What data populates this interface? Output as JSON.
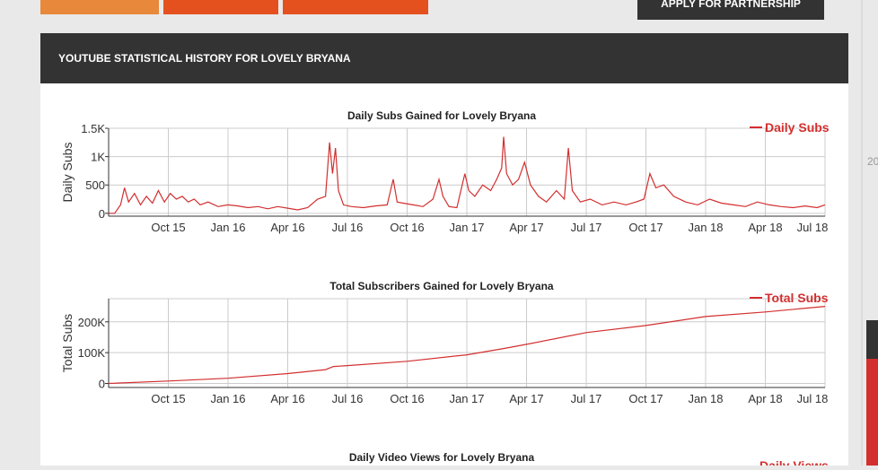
{
  "top_button": "APPLY FOR PARTNERSHIP",
  "section_title": "YOUTUBE STATISTICAL HISTORY FOR LOVELY BRYANA",
  "side_text": "20",
  "chart_data": [
    {
      "type": "line",
      "title": "Daily Subs Gained for Lovely Bryana",
      "y_label": "Daily Subs",
      "xlim": [
        0,
        36
      ],
      "ylim": [
        -50,
        1500
      ],
      "xticks": [
        {
          "value": 3,
          "label": "Oct 15"
        },
        {
          "value": 6,
          "label": "Jan 16"
        },
        {
          "value": 9,
          "label": "Apr 16"
        },
        {
          "value": 12,
          "label": "Jul 16"
        },
        {
          "value": 15,
          "label": "Oct 16"
        },
        {
          "value": 18,
          "label": "Jan 17"
        },
        {
          "value": 21,
          "label": "Apr 17"
        },
        {
          "value": 24,
          "label": "Jul 17"
        },
        {
          "value": 27,
          "label": "Oct 17"
        },
        {
          "value": 30,
          "label": "Jan 18"
        },
        {
          "value": 33,
          "label": "Apr 18"
        },
        {
          "value": 36,
          "label": "Jul 18"
        }
      ],
      "yticks": [
        0,
        500,
        {
          "value": 1000,
          "label": "1K"
        },
        {
          "value": 1500,
          "label": "1.5K"
        }
      ],
      "grid": true,
      "legend": "top-right",
      "x": [
        0,
        0.3,
        0.6,
        0.8,
        1,
        1.3,
        1.6,
        1.9,
        2.2,
        2.5,
        2.8,
        3.1,
        3.4,
        3.7,
        4,
        4.3,
        4.6,
        5,
        5.5,
        6,
        6.5,
        7,
        7.5,
        8,
        8.5,
        9,
        9.5,
        10,
        10.5,
        10.9,
        11.1,
        11.25,
        11.4,
        11.55,
        11.8,
        12.2,
        12.8,
        13.4,
        14,
        14.3,
        14.5,
        14.8,
        15.3,
        15.8,
        16.3,
        16.6,
        16.8,
        17.1,
        17.5,
        17.9,
        18.1,
        18.4,
        18.8,
        19.2,
        19.5,
        19.75,
        19.85,
        20,
        20.3,
        20.6,
        20.9,
        21.2,
        21.6,
        22,
        22.5,
        22.9,
        23.1,
        23.3,
        23.7,
        24.2,
        24.8,
        25.4,
        26,
        26.5,
        26.9,
        27.2,
        27.5,
        27.9,
        28.4,
        29,
        29.6,
        30.2,
        30.8,
        31.4,
        32,
        32.6,
        33.2,
        33.8,
        34.4,
        35,
        35.6,
        36
      ],
      "series": [
        {
          "name": "Daily Subs",
          "color": "#d32f2f",
          "values": [
            0,
            0,
            150,
            450,
            200,
            350,
            150,
            300,
            180,
            400,
            200,
            350,
            250,
            300,
            200,
            250,
            150,
            200,
            120,
            150,
            130,
            100,
            120,
            80,
            120,
            90,
            60,
            100,
            250,
            300,
            1250,
            700,
            1150,
            400,
            150,
            120,
            100,
            130,
            150,
            600,
            200,
            180,
            150,
            120,
            250,
            600,
            300,
            120,
            100,
            700,
            400,
            300,
            500,
            400,
            600,
            800,
            1350,
            700,
            500,
            600,
            900,
            500,
            300,
            200,
            400,
            250,
            1150,
            400,
            200,
            250,
            150,
            200,
            150,
            200,
            250,
            700,
            450,
            500,
            300,
            200,
            150,
            250,
            180,
            150,
            120,
            200,
            150,
            120,
            100,
            130,
            100,
            150
          ]
        }
      ]
    },
    {
      "type": "line",
      "title": "Total Subscribers Gained for Lovely Bryana",
      "y_label": "Total Subs",
      "xlim": [
        0,
        36
      ],
      "ylim": [
        -13000,
        275000
      ],
      "xticks": [
        {
          "value": 3,
          "label": "Oct 15"
        },
        {
          "value": 6,
          "label": "Jan 16"
        },
        {
          "value": 9,
          "label": "Apr 16"
        },
        {
          "value": 12,
          "label": "Jul 16"
        },
        {
          "value": 15,
          "label": "Oct 16"
        },
        {
          "value": 18,
          "label": "Jan 17"
        },
        {
          "value": 21,
          "label": "Apr 17"
        },
        {
          "value": 24,
          "label": "Jul 17"
        },
        {
          "value": 27,
          "label": "Oct 17"
        },
        {
          "value": 30,
          "label": "Jan 18"
        },
        {
          "value": 33,
          "label": "Apr 18"
        },
        {
          "value": 36,
          "label": "Jul 18"
        }
      ],
      "yticks": [
        0,
        {
          "value": 100000,
          "label": "100K"
        },
        {
          "value": 200000,
          "label": "200K"
        }
      ],
      "grid": true,
      "legend": "top-right",
      "x": [
        0,
        3,
        6,
        9,
        10.9,
        11.3,
        12,
        15,
        18,
        20,
        21,
        24,
        27,
        30,
        33,
        36
      ],
      "series": [
        {
          "name": "Total Subs",
          "color": "#d32f2f",
          "values": [
            0,
            8000,
            17000,
            32000,
            45000,
            55000,
            58000,
            72000,
            93000,
            115000,
            127000,
            165000,
            188000,
            217000,
            232000,
            250000
          ]
        }
      ]
    }
  ],
  "next_chart": {
    "title": "Daily Video Views for Lovely Bryana",
    "legend": "Daily Views"
  }
}
